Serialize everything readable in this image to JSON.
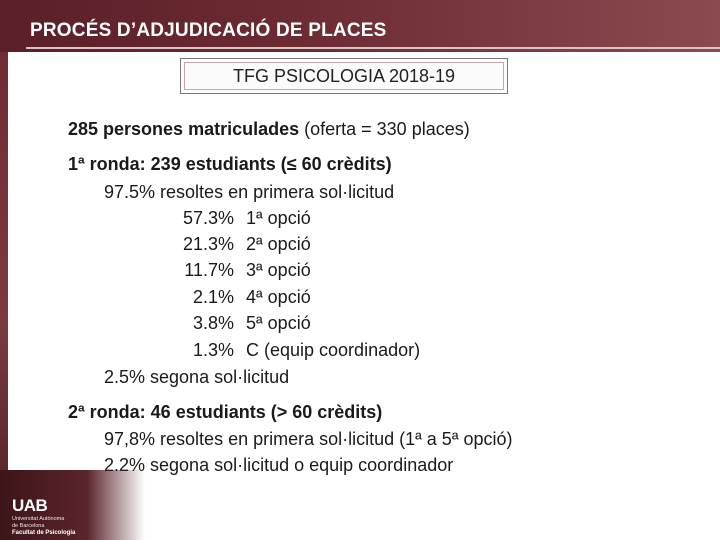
{
  "header": {
    "title": "PROCÉS D’ADJUDICACIÓ DE PLACES"
  },
  "subtitle": "TFG PSICOLOGIA 2018-19",
  "enrolled": {
    "bold": "285 persones matriculades",
    "rest": " (oferta = 330 places)"
  },
  "round1": {
    "heading": "1ª ronda: 239 estudiants (≤ 60 crèdits)",
    "first_request": "97.5% resoltes en primera sol·licitud",
    "options": [
      {
        "pct": "57.3%",
        "label": "1ª opció"
      },
      {
        "pct": "21.3%",
        "label": "2ª opció"
      },
      {
        "pct": "11.7%",
        "label": "3ª opció"
      },
      {
        "pct": "2.1%",
        "label": "4ª opció"
      },
      {
        "pct": "3.8%",
        "label": "5ª opció"
      },
      {
        "pct": "1.3%",
        "label": "C (equip coordinador)"
      }
    ],
    "second_request": "2.5% segona sol·licitud"
  },
  "round2": {
    "heading": "2ª ronda: 46 estudiants (> 60 crèdits)",
    "first_request": "97,8% resoltes en primera sol·licitud (1ª a 5ª opció)",
    "second_request": "2.2% segona sol·licitud o equip coordinador"
  },
  "footer": {
    "logo_text": "UAB",
    "university_line1": "Universitat Autònoma",
    "university_line2": "de Barcelona",
    "faculty": "Facultat de Psicologia"
  }
}
